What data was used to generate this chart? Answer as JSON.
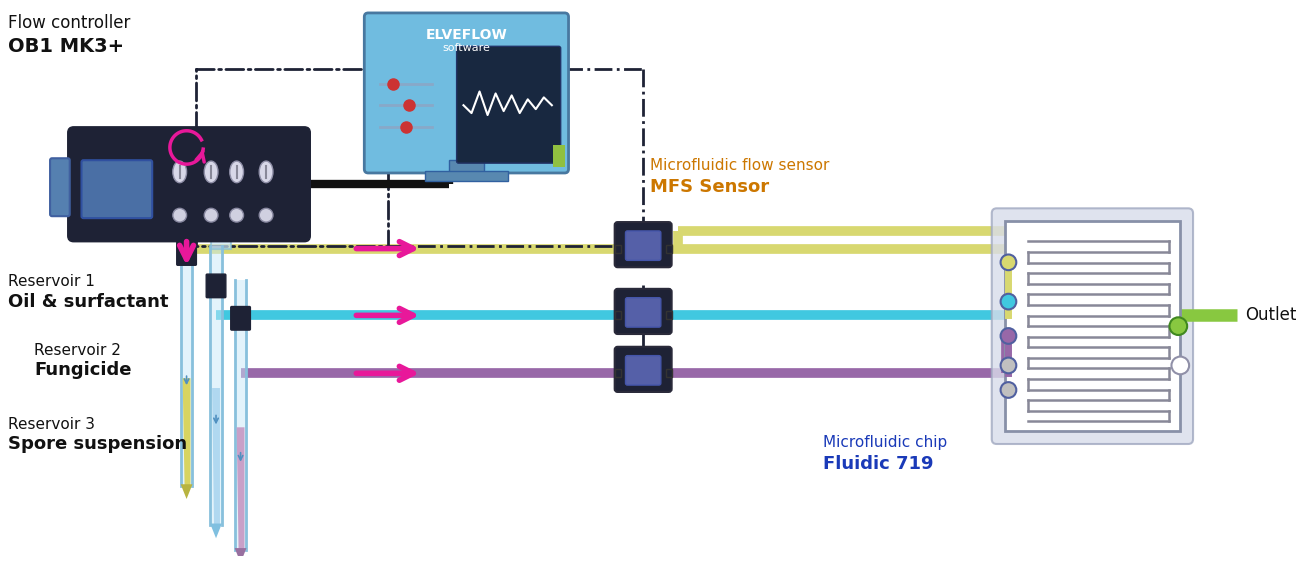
{
  "bg_color": "#ffffff",
  "colors": {
    "ctrl_body": "#1e2235",
    "ctrl_screen": "#4a6fa5",
    "ctrl_ports": "#e0e0f0",
    "bracket_blue": "#5580b0",
    "line_yellow": "#d8d870",
    "line_blue": "#40c8e0",
    "line_purple": "#9868a8",
    "line_green": "#88c840",
    "sensor_body": "#1e2235",
    "sensor_screen": "#5560a8",
    "chip_bg": "#e4e8f0",
    "chip_inner": "#c8ccd8",
    "chip_border": "#9098b0",
    "chip_coil": "#888898",
    "monitor_bg": "#70bce0",
    "monitor_screen": "#182840",
    "monitor_stand": "#5888b0",
    "arrow_pink": "#e8189a",
    "dash_color": "#1e2235",
    "text_dark": "#111111",
    "text_orange": "#cc7700",
    "text_blue_label": "#1a3ab8",
    "cable_black": "#111111",
    "tube_glass": "#c8e8f8",
    "tube_glass_edge": "#88c0dc",
    "tube_yellow_liq": "#d8d460",
    "tube_blue_liq": "#b0d8f0",
    "tube_purple_liq": "#c8a0c8",
    "tube_tip_yellow": "#b8b440",
    "tube_tip_blue": "#80c0e0",
    "tube_tip_purple": "#9870a0",
    "tube_cap": "#1e2235",
    "port_yellow": "#d8d870",
    "port_blue": "#40c8e0",
    "port_purple": "#9868a8",
    "port_green": "#88c840",
    "port_circle": "#7080c0"
  },
  "labels": {
    "fc1": "Flow controller",
    "fc2": "OB1 MK3+",
    "mfs1": "Microfluidic flow sensor",
    "mfs2": "MFS Sensor",
    "chip1": "Microfluidic chip",
    "chip2": "Fluidic 719",
    "res1a": "Reservoir 1",
    "res1b": "Oil & surfactant",
    "res2a": "Reservoir 2",
    "res2b": "Fungicide",
    "res3a": "Reservoir 3",
    "res3b": "Spore suspension",
    "outlet": "Outlet",
    "elveflow": "ELVEFLOW",
    "software": "software"
  }
}
